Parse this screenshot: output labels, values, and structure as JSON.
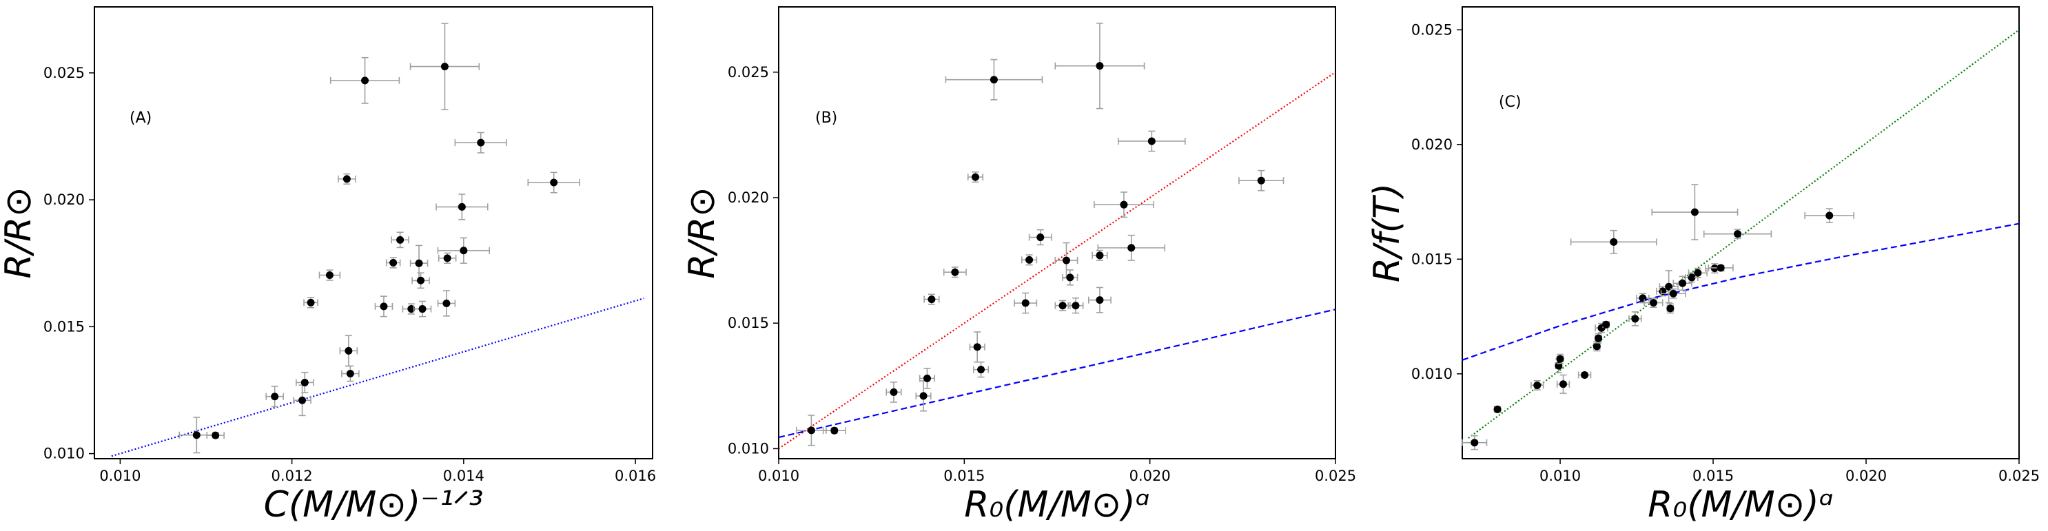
{
  "chart_data": [
    {
      "type": "scatter",
      "panel_label": "(A)",
      "xlabel": "C(M/M⊙)⁻¹ᐟ³",
      "ylabel": "R/R⊙",
      "xlim": [
        0.0097,
        0.0162
      ],
      "ylim": [
        0.0098,
        0.0276
      ],
      "xticks": [
        0.01,
        0.012,
        0.014,
        0.016
      ],
      "xtick_labels": [
        "0.010",
        "0.012",
        "0.014",
        "0.016"
      ],
      "yticks": [
        0.01,
        0.015,
        0.02,
        0.025
      ],
      "ytick_labels": [
        "0.010",
        "0.015",
        "0.020",
        "0.025"
      ],
      "points": [
        {
          "x": 0.01089,
          "y": 0.01073,
          "xerr": 0.0002,
          "yerr": 0.0007
        },
        {
          "x": 0.01111,
          "y": 0.01072,
          "xerr": 0.0001,
          "yerr": 0.0001
        },
        {
          "x": 0.0118,
          "y": 0.01225,
          "xerr": 0.0001,
          "yerr": 0.0004
        },
        {
          "x": 0.01212,
          "y": 0.0121,
          "xerr": 0.0001,
          "yerr": 0.0006
        },
        {
          "x": 0.01215,
          "y": 0.0128,
          "xerr": 0.0001,
          "yerr": 0.0004
        },
        {
          "x": 0.01222,
          "y": 0.01595,
          "xerr": 8e-05,
          "yerr": 0.0002
        },
        {
          "x": 0.01244,
          "y": 0.01703,
          "xerr": 0.00012,
          "yerr": 0.0002
        },
        {
          "x": 0.01266,
          "y": 0.01405,
          "xerr": 0.0001,
          "yerr": 0.0006
        },
        {
          "x": 0.01268,
          "y": 0.01315,
          "xerr": 0.0001,
          "yerr": 0.0003
        },
        {
          "x": 0.01264,
          "y": 0.02082,
          "xerr": 0.0001,
          "yerr": 0.0002
        },
        {
          "x": 0.01285,
          "y": 0.0247,
          "xerr": 0.0004,
          "yerr": 0.0009
        },
        {
          "x": 0.01307,
          "y": 0.0158,
          "xerr": 0.0001,
          "yerr": 0.0004
        },
        {
          "x": 0.01318,
          "y": 0.01752,
          "xerr": 8e-05,
          "yerr": 0.0002
        },
        {
          "x": 0.01326,
          "y": 0.01842,
          "xerr": 0.0001,
          "yerr": 0.0003
        },
        {
          "x": 0.01339,
          "y": 0.0157,
          "xerr": 0.0001,
          "yerr": 0.0002
        },
        {
          "x": 0.01348,
          "y": 0.0175,
          "xerr": 0.0001,
          "yerr": 0.0007
        },
        {
          "x": 0.0135,
          "y": 0.01682,
          "xerr": 0.0001,
          "yerr": 0.0003
        },
        {
          "x": 0.01352,
          "y": 0.0157,
          "xerr": 0.0001,
          "yerr": 0.0003
        },
        {
          "x": 0.01378,
          "y": 0.02525,
          "xerr": 0.0004,
          "yerr": 0.0017
        },
        {
          "x": 0.0138,
          "y": 0.01592,
          "xerr": 0.0001,
          "yerr": 0.0005
        },
        {
          "x": 0.01381,
          "y": 0.0177,
          "xerr": 0.0001,
          "yerr": 0.0002
        },
        {
          "x": 0.01398,
          "y": 0.01972,
          "xerr": 0.0003,
          "yerr": 0.0005
        },
        {
          "x": 0.014,
          "y": 0.018,
          "xerr": 0.0003,
          "yerr": 0.0005
        },
        {
          "x": 0.0142,
          "y": 0.02225,
          "xerr": 0.0003,
          "yerr": 0.0004
        },
        {
          "x": 0.01505,
          "y": 0.02068,
          "xerr": 0.0003,
          "yerr": 0.0004
        }
      ],
      "lines": [
        {
          "style": "dotted",
          "color": "#0000ff",
          "x": [
            0.0099,
            0.0161
          ],
          "y": [
            0.0099,
            0.01612
          ]
        }
      ]
    },
    {
      "type": "scatter",
      "panel_label": "(B)",
      "xlabel": "R₀(M/M⊙)ᵅ",
      "ylabel": "R/R⊙",
      "xlim": [
        0.01,
        0.025
      ],
      "ylim": [
        0.0096,
        0.0276
      ],
      "xticks": [
        0.01,
        0.015,
        0.02,
        0.025
      ],
      "xtick_labels": [
        "0.010",
        "0.015",
        "0.020",
        "0.025"
      ],
      "yticks": [
        0.01,
        0.015,
        0.02,
        0.025
      ],
      "ytick_labels": [
        "0.010",
        "0.015",
        "0.020",
        "0.025"
      ],
      "points": [
        {
          "x": 0.01088,
          "y": 0.01073,
          "xerr": 0.0004,
          "yerr": 0.0006
        },
        {
          "x": 0.0115,
          "y": 0.01072,
          "xerr": 0.0003,
          "yerr": 0.0001
        },
        {
          "x": 0.0131,
          "y": 0.01225,
          "xerr": 0.0002,
          "yerr": 0.0004
        },
        {
          "x": 0.0139,
          "y": 0.0121,
          "xerr": 0.0002,
          "yerr": 0.0006
        },
        {
          "x": 0.014,
          "y": 0.0128,
          "xerr": 0.0002,
          "yerr": 0.0004
        },
        {
          "x": 0.01412,
          "y": 0.01595,
          "xerr": 0.0002,
          "yerr": 0.0002
        },
        {
          "x": 0.01475,
          "y": 0.01703,
          "xerr": 0.0003,
          "yerr": 0.0002
        },
        {
          "x": 0.01535,
          "y": 0.01405,
          "xerr": 0.0002,
          "yerr": 0.0006
        },
        {
          "x": 0.01545,
          "y": 0.01315,
          "xerr": 0.0002,
          "yerr": 0.0003
        },
        {
          "x": 0.0153,
          "y": 0.02082,
          "xerr": 0.0002,
          "yerr": 0.0002
        },
        {
          "x": 0.0158,
          "y": 0.0247,
          "xerr": 0.0013,
          "yerr": 0.0008
        },
        {
          "x": 0.01665,
          "y": 0.0158,
          "xerr": 0.0003,
          "yerr": 0.0004
        },
        {
          "x": 0.01675,
          "y": 0.01752,
          "xerr": 0.0002,
          "yerr": 0.0002
        },
        {
          "x": 0.01705,
          "y": 0.01842,
          "xerr": 0.0003,
          "yerr": 0.0003
        },
        {
          "x": 0.01765,
          "y": 0.0157,
          "xerr": 0.0002,
          "yerr": 0.0002
        },
        {
          "x": 0.01775,
          "y": 0.0175,
          "xerr": 0.0003,
          "yerr": 0.0007
        },
        {
          "x": 0.01785,
          "y": 0.01682,
          "xerr": 0.0002,
          "yerr": 0.0003
        },
        {
          "x": 0.018,
          "y": 0.0157,
          "xerr": 0.0002,
          "yerr": 0.0003
        },
        {
          "x": 0.01865,
          "y": 0.02525,
          "xerr": 0.0012,
          "yerr": 0.0017
        },
        {
          "x": 0.01865,
          "y": 0.01592,
          "xerr": 0.0003,
          "yerr": 0.0005
        },
        {
          "x": 0.01865,
          "y": 0.0177,
          "xerr": 0.0002,
          "yerr": 0.0002
        },
        {
          "x": 0.0193,
          "y": 0.01972,
          "xerr": 0.0008,
          "yerr": 0.0005
        },
        {
          "x": 0.0195,
          "y": 0.018,
          "xerr": 0.0009,
          "yerr": 0.0005
        },
        {
          "x": 0.02005,
          "y": 0.02225,
          "xerr": 0.0009,
          "yerr": 0.0004
        },
        {
          "x": 0.023,
          "y": 0.02068,
          "xerr": 0.0006,
          "yerr": 0.0004
        }
      ],
      "lines": [
        {
          "style": "dotted",
          "color": "#ff0000",
          "x": [
            0.01,
            0.025
          ],
          "y": [
            0.01,
            0.025
          ]
        },
        {
          "style": "dashed",
          "color": "#0000ff",
          "x": [
            0.01,
            0.025
          ],
          "y": [
            0.01045,
            0.01555
          ]
        }
      ]
    },
    {
      "type": "scatter",
      "panel_label": "(C)",
      "xlabel": "R₀(M/M⊙)ᵅ",
      "ylabel": "R/f(T)",
      "xlim": [
        0.0068,
        0.025
      ],
      "ylim": [
        0.0063,
        0.026
      ],
      "xticks": [
        0.01,
        0.015,
        0.02,
        0.025
      ],
      "xtick_labels": [
        "0.010",
        "0.015",
        "0.020",
        "0.025"
      ],
      "yticks": [
        0.01,
        0.015,
        0.02,
        0.025
      ],
      "ytick_labels": [
        "0.010",
        "0.015",
        "0.020",
        "0.025"
      ],
      "points": [
        {
          "x": 0.0072,
          "y": 0.007,
          "xerr": 0.0004,
          "yerr": 0.0003
        },
        {
          "x": 0.00795,
          "y": 0.00845,
          "xerr": 0.0001,
          "yerr": 0.0001
        },
        {
          "x": 0.00925,
          "y": 0.0095,
          "xerr": 0.0002,
          "yerr": 0.0002
        },
        {
          "x": 0.00995,
          "y": 0.01035,
          "xerr": 0.0001,
          "yerr": 0.0003
        },
        {
          "x": 0.01,
          "y": 0.01065,
          "xerr": 0.0001,
          "yerr": 0.0002
        },
        {
          "x": 0.0101,
          "y": 0.00955,
          "xerr": 0.0002,
          "yerr": 0.0004
        },
        {
          "x": 0.0108,
          "y": 0.00995,
          "xerr": 0.0002,
          "yerr": 0.0001
        },
        {
          "x": 0.0112,
          "y": 0.0112,
          "xerr": 0.0001,
          "yerr": 0.0002
        },
        {
          "x": 0.01125,
          "y": 0.01155,
          "xerr": 0.0001,
          "yerr": 0.0002
        },
        {
          "x": 0.01135,
          "y": 0.012,
          "xerr": 0.0002,
          "yerr": 0.0002
        },
        {
          "x": 0.0115,
          "y": 0.01215,
          "xerr": 0.0001,
          "yerr": 0.0001
        },
        {
          "x": 0.01175,
          "y": 0.01575,
          "xerr": 0.0014,
          "yerr": 0.0005
        },
        {
          "x": 0.01245,
          "y": 0.0124,
          "xerr": 0.0002,
          "yerr": 0.0003
        },
        {
          "x": 0.0127,
          "y": 0.0133,
          "xerr": 0.0002,
          "yerr": 0.0002
        },
        {
          "x": 0.01305,
          "y": 0.0131,
          "xerr": 0.0003,
          "yerr": 0.0002
        },
        {
          "x": 0.01335,
          "y": 0.0136,
          "xerr": 0.0002,
          "yerr": 0.0002
        },
        {
          "x": 0.01355,
          "y": 0.0138,
          "xerr": 0.0003,
          "yerr": 0.0007
        },
        {
          "x": 0.0137,
          "y": 0.0135,
          "xerr": 0.0004,
          "yerr": 0.0002
        },
        {
          "x": 0.0136,
          "y": 0.01285,
          "xerr": 0.0001,
          "yerr": 0.0002
        },
        {
          "x": 0.014,
          "y": 0.01395,
          "xerr": 0.0003,
          "yerr": 0.0003
        },
        {
          "x": 0.0143,
          "y": 0.0142,
          "xerr": 0.0002,
          "yerr": 0.0002
        },
        {
          "x": 0.0144,
          "y": 0.01705,
          "xerr": 0.0014,
          "yerr": 0.0012
        },
        {
          "x": 0.0145,
          "y": 0.0144,
          "xerr": 0.0003,
          "yerr": 0.0002
        },
        {
          "x": 0.01505,
          "y": 0.0146,
          "xerr": 0.0003,
          "yerr": 0.0002
        },
        {
          "x": 0.01525,
          "y": 0.01462,
          "xerr": 0.0004,
          "yerr": 0.0001
        },
        {
          "x": 0.0158,
          "y": 0.0161,
          "xerr": 0.0011,
          "yerr": 0.0002
        },
        {
          "x": 0.0188,
          "y": 0.0169,
          "xerr": 0.0008,
          "yerr": 0.0003
        }
      ],
      "lines": [
        {
          "style": "dotted",
          "color": "#008000",
          "x": [
            0.007,
            0.025
          ],
          "y": [
            0.0072,
            0.025
          ]
        },
        {
          "style": "dashed",
          "color": "#0000ff",
          "x": [
            0.0068,
            0.01,
            0.013,
            0.016,
            0.019,
            0.022,
            0.025
          ],
          "y": [
            0.0106,
            0.0121,
            0.0133,
            0.01425,
            0.01505,
            0.0158,
            0.01655
          ]
        }
      ]
    }
  ]
}
